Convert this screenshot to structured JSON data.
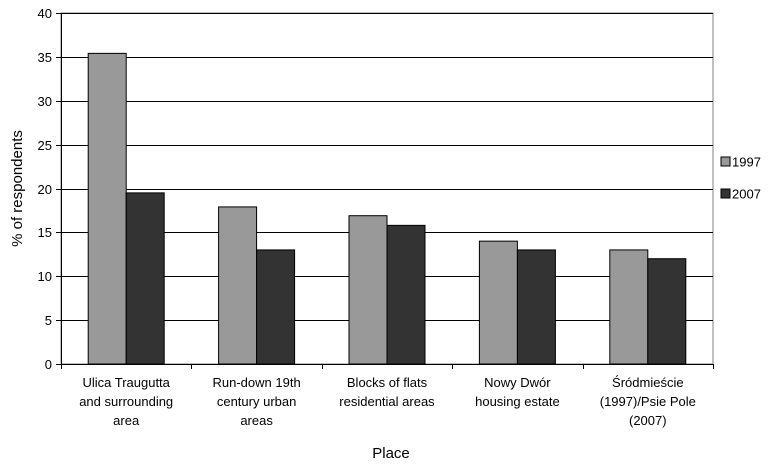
{
  "chart_data": {
    "type": "bar",
    "categories": [
      [
        "Ulica Traugutta",
        "and surrounding",
        "area"
      ],
      [
        "Run-down 19th",
        "century urban",
        "areas"
      ],
      [
        "Blocks of flats",
        "residential areas"
      ],
      [
        "Nowy Dwór",
        "housing estate"
      ],
      [
        "Śródmieście",
        "(1997)/Psie Pole",
        "(2007)"
      ]
    ],
    "series": [
      {
        "name": "1997",
        "values": [
          35.4,
          17.9,
          16.9,
          14.0,
          13.0
        ],
        "color": "#999999"
      },
      {
        "name": "2007",
        "values": [
          19.5,
          13.0,
          15.8,
          13.0,
          12.0
        ],
        "color": "#333333"
      }
    ],
    "title": "",
    "xlabel": "Place",
    "ylabel": "% of respondents",
    "ylim": [
      0,
      40
    ],
    "yticks": [
      0,
      5,
      10,
      15,
      20,
      25,
      30,
      35,
      40
    ],
    "grid": true,
    "legend_position": "right"
  }
}
